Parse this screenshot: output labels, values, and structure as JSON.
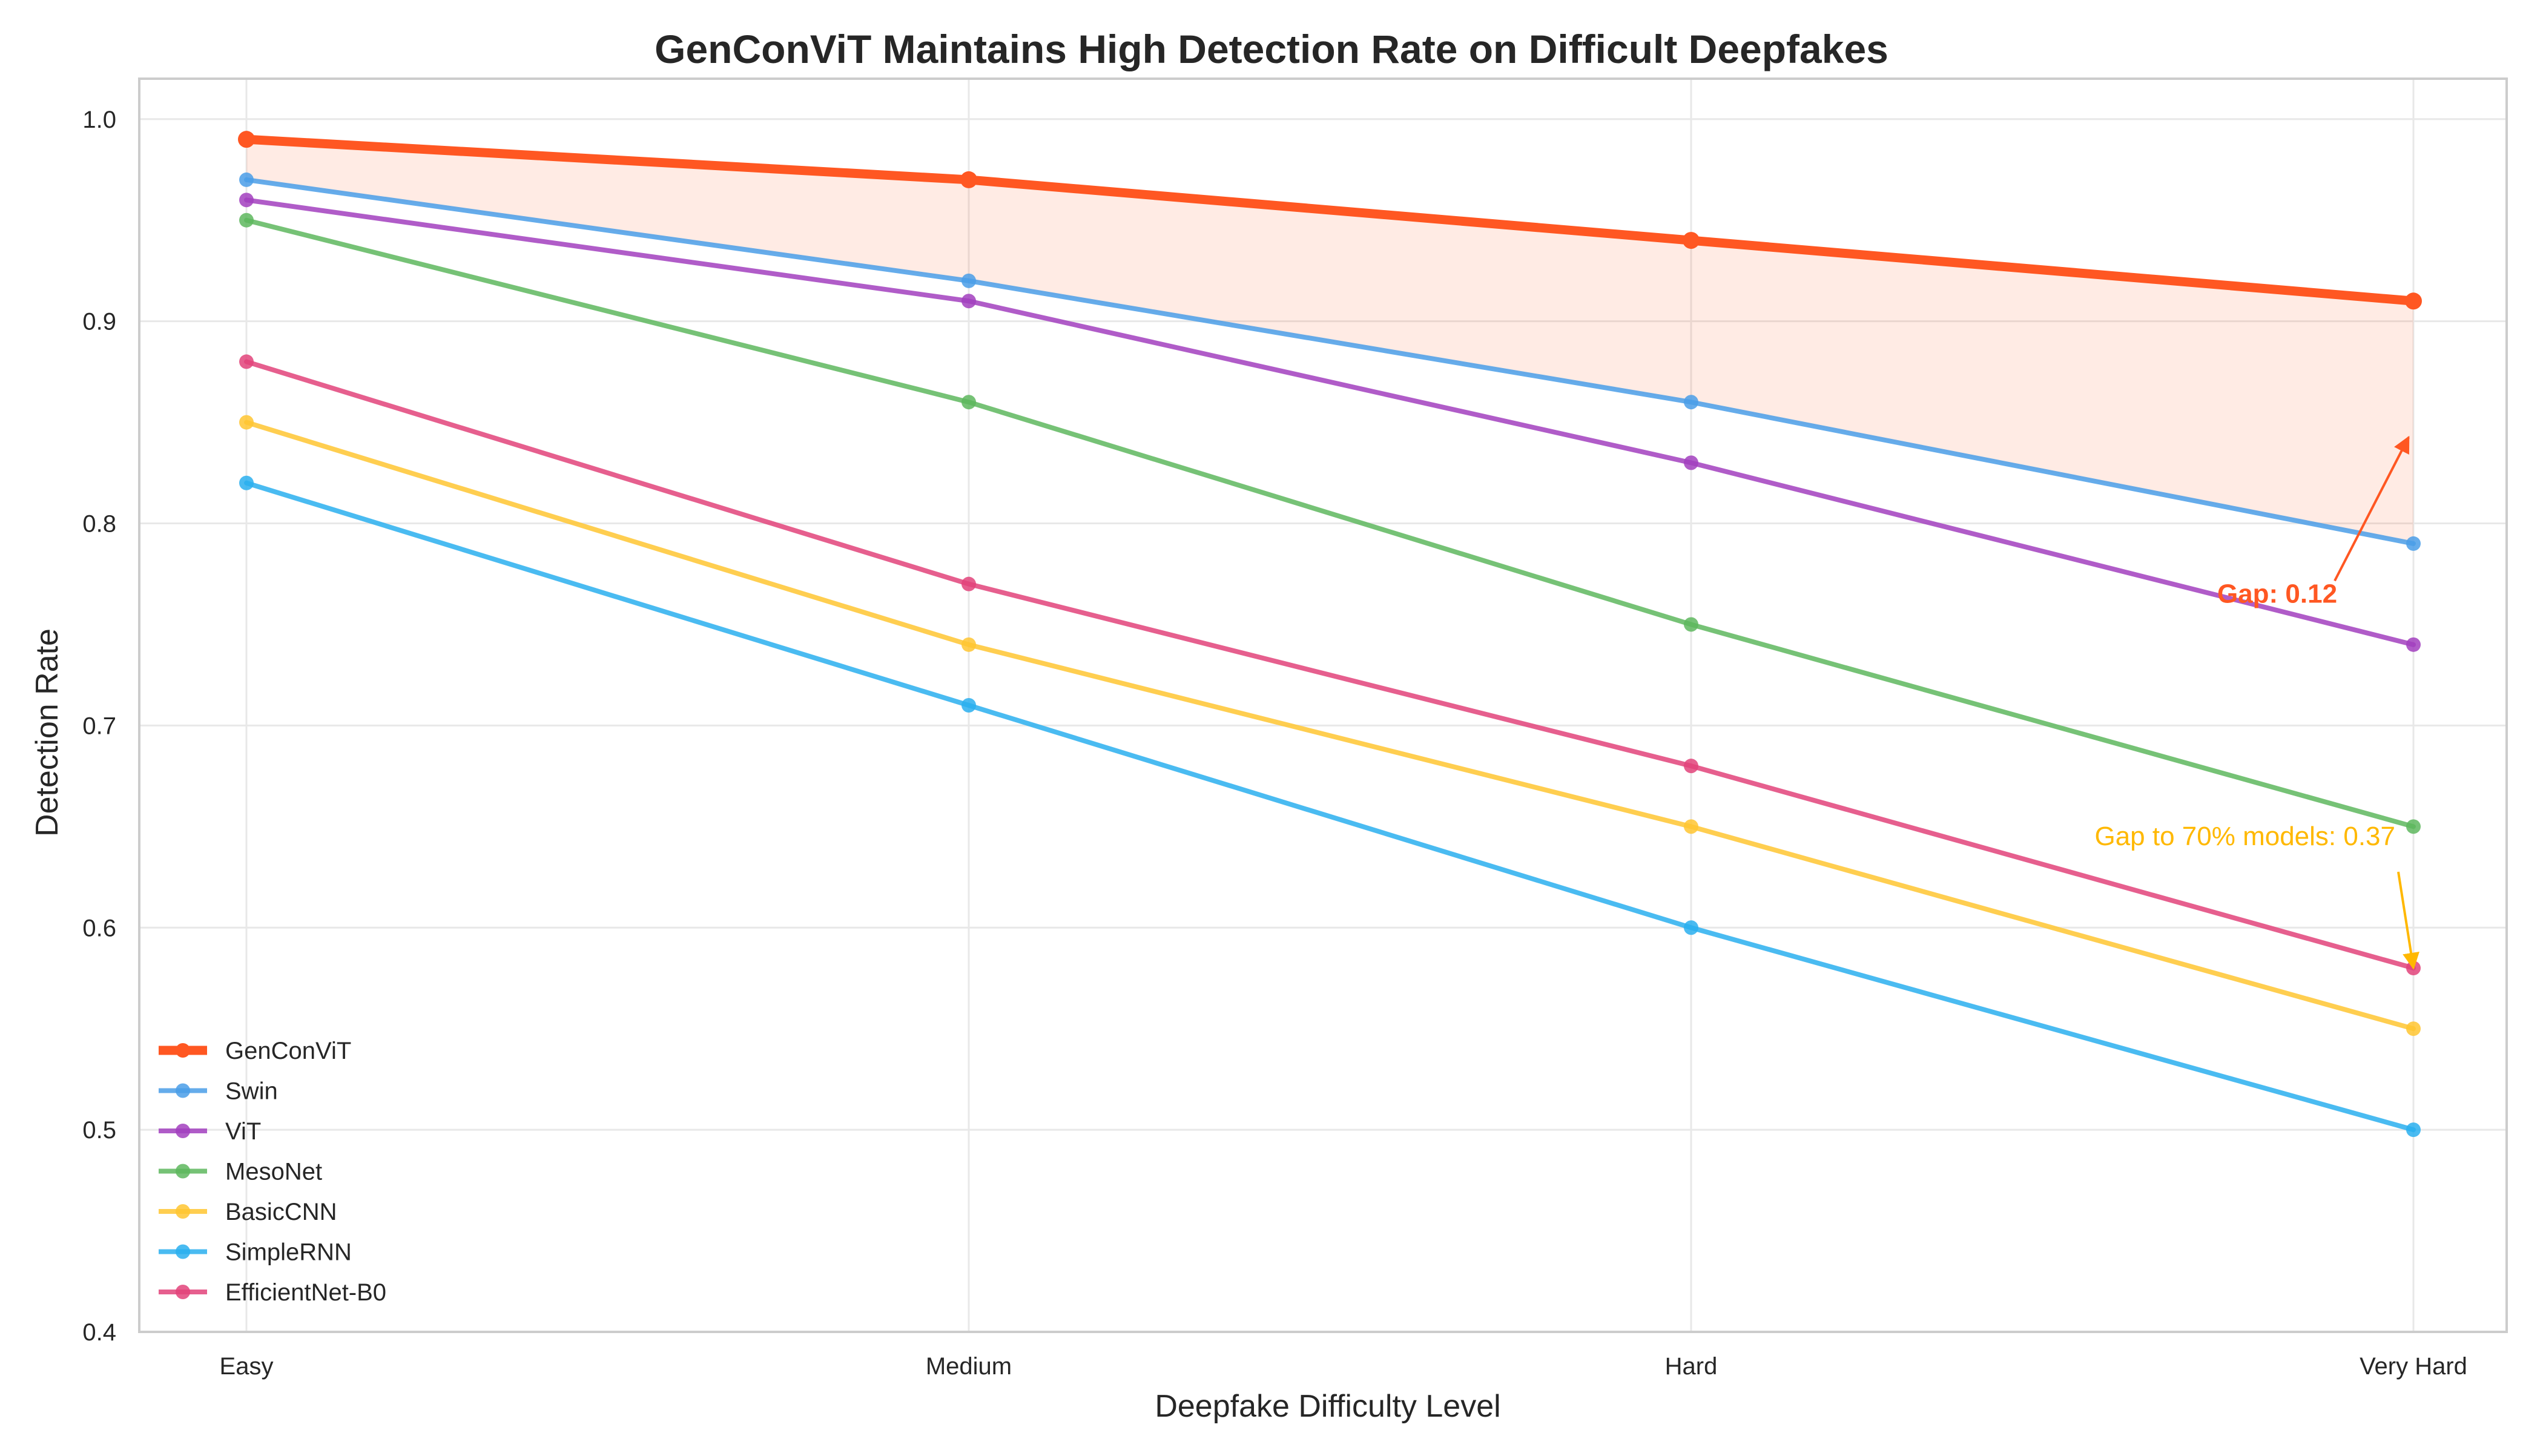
{
  "chart_data": {
    "type": "line",
    "title": "GenConViT Maintains High Detection Rate on Difficult Deepfakes",
    "xlabel": "Deepfake Difficulty Level",
    "ylabel": "Detection Rate",
    "categories": [
      "Easy",
      "Medium",
      "Hard",
      "Very Hard"
    ],
    "ylim": [
      0.4,
      1.02
    ],
    "yticks": [
      0.4,
      0.5,
      0.6,
      0.7,
      0.8,
      0.9,
      1.0
    ],
    "ytick_labels": [
      "0.4",
      "0.5",
      "0.6",
      "0.7",
      "0.8",
      "0.9",
      "1.0"
    ],
    "grid": true,
    "legend_position": "lower-left",
    "series": [
      {
        "name": "GenConViT",
        "values": [
          0.99,
          0.97,
          0.94,
          0.91
        ],
        "color": "#FF5722",
        "highlight": true
      },
      {
        "name": "Swin",
        "values": [
          0.97,
          0.92,
          0.86,
          0.79
        ],
        "color": "#4A9EE8"
      },
      {
        "name": "ViT",
        "values": [
          0.96,
          0.91,
          0.83,
          0.74
        ],
        "color": "#A23FBE"
      },
      {
        "name": "MesoNet",
        "values": [
          0.95,
          0.86,
          0.75,
          0.65
        ],
        "color": "#5EB75E"
      },
      {
        "name": "BasicCNN",
        "values": [
          0.85,
          0.74,
          0.65,
          0.55
        ],
        "color": "#FFC531"
      },
      {
        "name": "SimpleRNN",
        "values": [
          0.82,
          0.71,
          0.6,
          0.5
        ],
        "color": "#2AAFEE"
      },
      {
        "name": "EfficientNet-B0",
        "values": [
          0.88,
          0.77,
          0.68,
          0.58
        ],
        "color": "#E2437A"
      }
    ],
    "fill_between": {
      "upper": "GenConViT",
      "lower": "Swin",
      "color": "#FF5722"
    },
    "annotations": [
      {
        "text": "Gap: 0.12",
        "color": "#FF5722",
        "bold": true,
        "arrow_to": {
          "x": "Very Hard",
          "y": 0.845
        },
        "text_at": {
          "x": "Very Hard",
          "y": 0.765
        }
      },
      {
        "text": "Gap to 70% models: 0.37",
        "color": "#FFB800",
        "bold": false,
        "arrow_to": {
          "x": "Very Hard",
          "y": 0.58
        },
        "text_at": {
          "x": "Very Hard",
          "y": 0.645
        }
      }
    ]
  }
}
